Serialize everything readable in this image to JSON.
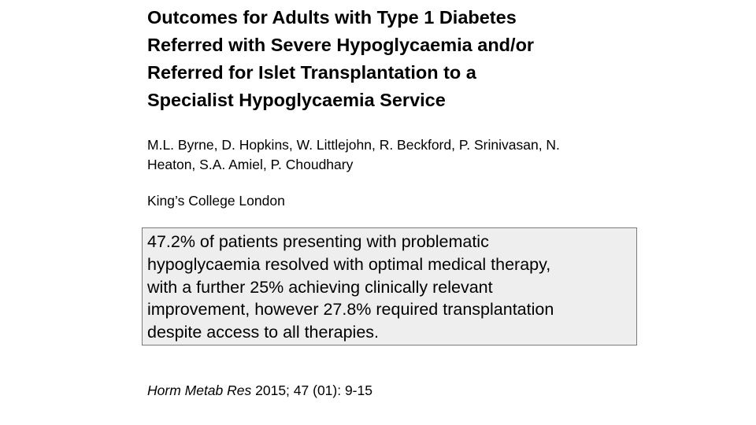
{
  "paper": {
    "title_lines": [
      "Outcomes for Adults with Type 1 Diabetes",
      "Referred with Severe Hypoglycaemia and/or",
      "Referred for Islet Transplantation to a",
      "Specialist Hypoglycaemia Service"
    ],
    "author_lines": [
      "M.L. Byrne, D. Hopkins, W. Littlejohn, R. Beckford, P. Srinivasan, N.",
      "Heaton, S.A. Amiel, P. Choudhary"
    ],
    "affiliation": "King’s College London",
    "summary_lines": [
      "47.2% of patients presenting with problematic",
      "hypoglycaemia resolved with optimal medical therapy,",
      "with a further 25% achieving clinically relevant",
      "improvement, however 27.8% required transplantation",
      "despite access to all therapies."
    ],
    "citation": {
      "journal": "Horm Metab Res",
      "details": " 2015; 47 (01): 9-15"
    }
  }
}
